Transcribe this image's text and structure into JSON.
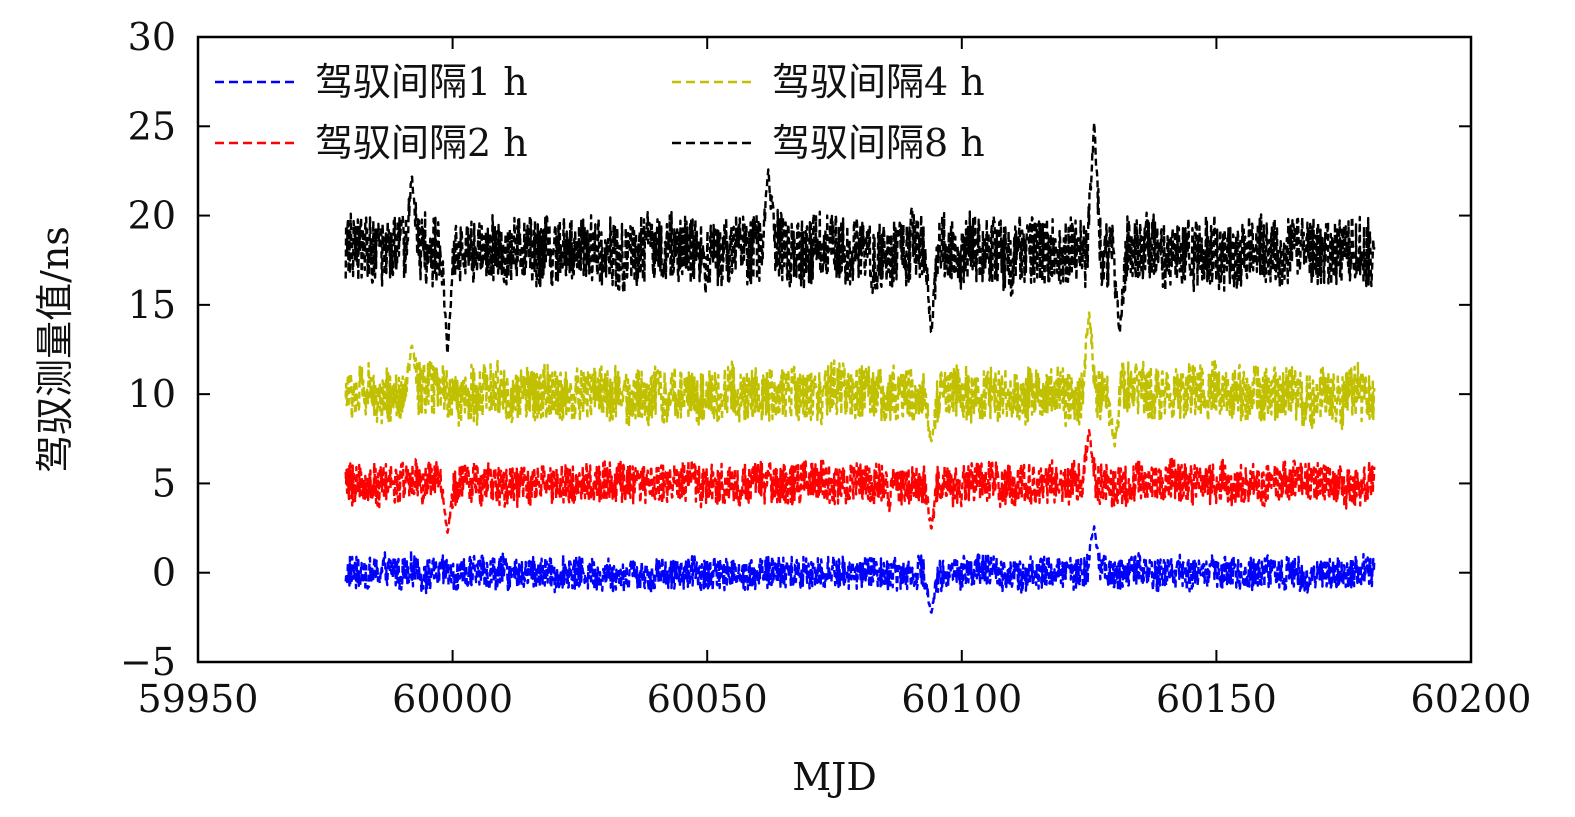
{
  "chart_data": {
    "type": "line",
    "title": "",
    "xlabel": "MJD",
    "ylabel": "驾驭测量值/ns",
    "xlim": [
      59950,
      60200
    ],
    "ylim": [
      -5,
      30
    ],
    "x_ticks": [
      59950,
      60000,
      60050,
      60100,
      60150,
      60200
    ],
    "x_tick_labels": [
      "59950",
      "60000",
      "60050",
      "60100",
      "60150",
      "60200"
    ],
    "y_ticks": [
      -5,
      0,
      5,
      10,
      15,
      20,
      25,
      30
    ],
    "y_tick_labels": [
      "−5",
      "0",
      "5",
      "10",
      "15",
      "20",
      "25",
      "30"
    ],
    "grid": false,
    "legend_position": "top-left",
    "x_start": 59979,
    "x_end": 60181,
    "series": [
      {
        "name": "驾驭间隔1 h",
        "color": "#0000ff",
        "baseline": 0,
        "noise_amplitude": 1.2,
        "features": [
          {
            "x": 60094,
            "value": -2.3
          },
          {
            "x": 60126,
            "value": 2.6
          }
        ]
      },
      {
        "name": "驾驭间隔2 h",
        "color": "#ff0000",
        "baseline": 5,
        "noise_amplitude": 1.5,
        "features": [
          {
            "x": 59999,
            "value": 2.2
          },
          {
            "x": 60094,
            "value": 2.4
          },
          {
            "x": 60125,
            "value": 8.0
          }
        ]
      },
      {
        "name": "驾驭间隔4 h",
        "color": "#c0c000",
        "baseline": 10,
        "noise_amplitude": 2.0,
        "features": [
          {
            "x": 59992,
            "value": 12.8
          },
          {
            "x": 60094,
            "value": 7.3
          },
          {
            "x": 60125,
            "value": 14.6
          },
          {
            "x": 60130,
            "value": 7.0
          }
        ]
      },
      {
        "name": "驾驭间隔8 h",
        "color": "#000000",
        "baseline": 18,
        "noise_amplitude": 2.5,
        "features": [
          {
            "x": 59992,
            "value": 22.3
          },
          {
            "x": 59999,
            "value": 12.2
          },
          {
            "x": 60062,
            "value": 22.6
          },
          {
            "x": 60094,
            "value": 13.3
          },
          {
            "x": 60126,
            "value": 25.2
          },
          {
            "x": 60131,
            "value": 13.3
          }
        ]
      }
    ]
  }
}
